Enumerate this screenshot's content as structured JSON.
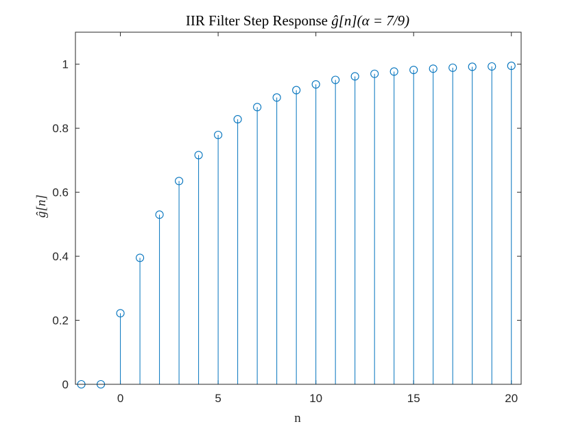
{
  "colors": {
    "stem": "#0072BD",
    "axis": "#262626",
    "background": "#ffffff"
  },
  "chart_data": {
    "type": "stem",
    "title_prefix": "IIR Filter Step Response ",
    "title_math": "ĝ[n](α = 7/9)",
    "xlabel": "n",
    "ylabel": "ĝ[n]",
    "xlim": [
      -2.3,
      20.5
    ],
    "ylim": [
      0,
      1.1
    ],
    "xticks": [
      0,
      5,
      10,
      15,
      20
    ],
    "yticks": [
      0,
      0.2,
      0.4,
      0.6,
      0.8,
      1
    ],
    "ytick_labels": [
      "0",
      "0.2",
      "0.4",
      "0.6",
      "0.8",
      "1"
    ],
    "grid": false,
    "legend": "none",
    "marker": "circle-open",
    "series": [
      {
        "x": [
          -2,
          -1,
          0,
          1,
          2,
          3,
          4,
          5,
          6,
          7,
          8,
          9,
          10,
          11,
          12,
          13,
          14,
          15,
          16,
          17,
          18,
          19,
          20
        ],
        "values": [
          0,
          0,
          0.222,
          0.395,
          0.53,
          0.635,
          0.716,
          0.779,
          0.828,
          0.866,
          0.896,
          0.919,
          0.937,
          0.951,
          0.962,
          0.97,
          0.977,
          0.982,
          0.986,
          0.989,
          0.992,
          0.993,
          0.995
        ]
      }
    ]
  }
}
